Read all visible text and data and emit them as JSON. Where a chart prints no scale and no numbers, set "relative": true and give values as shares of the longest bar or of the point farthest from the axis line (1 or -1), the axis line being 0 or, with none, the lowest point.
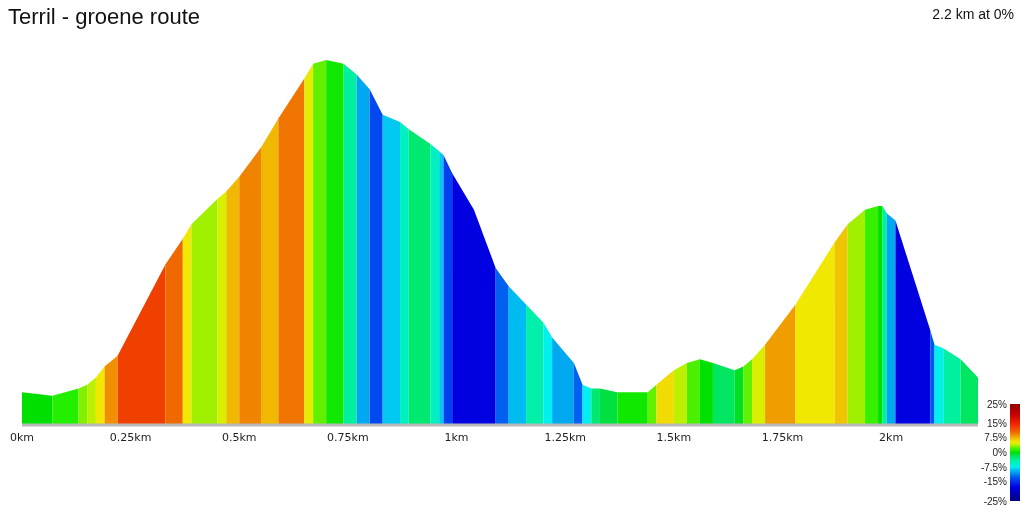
{
  "chart_data": {
    "type": "area",
    "title": "Terril - groene route",
    "subtitle": "2.2 km at 0%",
    "relative": true,
    "series": [
      {
        "x": [
          0,
          0.07
        ],
        "values": [
          0.09,
          0.08
        ],
        "color": "#00e000"
      },
      {
        "x": [
          0.07,
          0.13
        ],
        "values": [
          0.08,
          0.1
        ],
        "color": "#22f000"
      },
      {
        "x": [
          0.13,
          0.15
        ],
        "values": [
          0.1,
          0.11
        ],
        "color": "#80f000"
      },
      {
        "x": [
          0.15,
          0.17
        ],
        "values": [
          0.11,
          0.13
        ],
        "color": "#bcf000"
      },
      {
        "x": [
          0.17,
          0.19
        ],
        "values": [
          0.13,
          0.16
        ],
        "color": "#f0e800"
      },
      {
        "x": [
          0.19,
          0.22
        ],
        "values": [
          0.16,
          0.19
        ],
        "color": "#f09000"
      },
      {
        "x": [
          0.22,
          0.33
        ],
        "values": [
          0.19,
          0.44
        ],
        "color": "#f04000"
      },
      {
        "x": [
          0.33,
          0.37
        ],
        "values": [
          0.44,
          0.51
        ],
        "color": "#f06800"
      },
      {
        "x": [
          0.37,
          0.39
        ],
        "values": [
          0.51,
          0.55
        ],
        "color": "#f0e800"
      },
      {
        "x": [
          0.39,
          0.45
        ],
        "values": [
          0.55,
          0.62
        ],
        "color": "#a0f000"
      },
      {
        "x": [
          0.45,
          0.47
        ],
        "values": [
          0.62,
          0.64
        ],
        "color": "#d8f000"
      },
      {
        "x": [
          0.47,
          0.5
        ],
        "values": [
          0.64,
          0.68
        ],
        "color": "#f0b800"
      },
      {
        "x": [
          0.5,
          0.55
        ],
        "values": [
          0.68,
          0.76
        ],
        "color": "#f08300"
      },
      {
        "x": [
          0.55,
          0.59
        ],
        "values": [
          0.76,
          0.84
        ],
        "color": "#f0b800"
      },
      {
        "x": [
          0.59,
          0.65
        ],
        "values": [
          0.84,
          0.95
        ],
        "color": "#f07500"
      },
      {
        "x": [
          0.65,
          0.67
        ],
        "values": [
          0.95,
          0.99
        ],
        "color": "#e4ec00"
      },
      {
        "x": [
          0.67,
          0.7
        ],
        "values": [
          0.99,
          1
        ],
        "color": "#60f000"
      },
      {
        "x": [
          0.7,
          0.74
        ],
        "values": [
          1,
          0.99
        ],
        "color": "#11e800"
      },
      {
        "x": [
          0.74,
          0.77
        ],
        "values": [
          0.99,
          0.96
        ],
        "color": "#00f0a0"
      },
      {
        "x": [
          0.77,
          0.8
        ],
        "values": [
          0.96,
          0.92
        ],
        "color": "#00a8f0"
      },
      {
        "x": [
          0.8,
          0.83
        ],
        "values": [
          0.92,
          0.85
        ],
        "color": "#0048f0"
      },
      {
        "x": [
          0.83,
          0.87
        ],
        "values": [
          0.85,
          0.83
        ],
        "color": "#00c8f0"
      },
      {
        "x": [
          0.87,
          0.89
        ],
        "values": [
          0.83,
          0.81
        ],
        "color": "#00f0c0"
      },
      {
        "x": [
          0.89,
          0.94
        ],
        "values": [
          0.81,
          0.77
        ],
        "color": "#00e870"
      },
      {
        "x": [
          0.94,
          0.96
        ],
        "values": [
          0.77,
          0.75
        ],
        "color": "#00f0c0"
      },
      {
        "x": [
          0.96,
          0.97
        ],
        "values": [
          0.75,
          0.74
        ],
        "color": "#00c8f0"
      },
      {
        "x": [
          0.97,
          0.99
        ],
        "values": [
          0.74,
          0.69
        ],
        "color": "#0040f0"
      },
      {
        "x": [
          0.99,
          1.04,
          1.09
        ],
        "values": [
          0.69,
          0.59,
          0.43
        ],
        "color": "#0000e0"
      },
      {
        "x": [
          1.09,
          1.12
        ],
        "values": [
          0.43,
          0.38
        ],
        "color": "#0060f0"
      },
      {
        "x": [
          1.12,
          1.16
        ],
        "values": [
          0.38,
          0.33
        ],
        "color": "#00bbf0"
      },
      {
        "x": [
          1.16,
          1.2
        ],
        "values": [
          0.33,
          0.28
        ],
        "color": "#00f0ab"
      },
      {
        "x": [
          1.2,
          1.22
        ],
        "values": [
          0.28,
          0.24
        ],
        "color": "#00f0f0"
      },
      {
        "x": [
          1.22,
          1.27
        ],
        "values": [
          0.24,
          0.17
        ],
        "color": "#00a8f0"
      },
      {
        "x": [
          1.27,
          1.29
        ],
        "values": [
          0.17,
          0.11
        ],
        "color": "#0060f0"
      },
      {
        "x": [
          1.29,
          1.31
        ],
        "values": [
          0.11,
          0.1
        ],
        "color": "#00f0f0"
      },
      {
        "x": [
          1.31,
          1.33
        ],
        "values": [
          0.1,
          0.1
        ],
        "color": "#00e870"
      },
      {
        "x": [
          1.33,
          1.37
        ],
        "values": [
          0.1,
          0.09
        ],
        "color": "#00e040"
      },
      {
        "x": [
          1.37,
          1.44
        ],
        "values": [
          0.09,
          0.09
        ],
        "color": "#11e800"
      },
      {
        "x": [
          1.44,
          1.46
        ],
        "values": [
          0.09,
          0.11
        ],
        "color": "#60f000"
      },
      {
        "x": [
          1.46,
          1.5
        ],
        "values": [
          0.11,
          0.15
        ],
        "color": "#f0dc00"
      },
      {
        "x": [
          1.5,
          1.53
        ],
        "values": [
          0.15,
          0.17
        ],
        "color": "#bcf000"
      },
      {
        "x": [
          1.53,
          1.56
        ],
        "values": [
          0.17,
          0.18
        ],
        "color": "#4bf000"
      },
      {
        "x": [
          1.56,
          1.59
        ],
        "values": [
          0.18,
          0.17
        ],
        "color": "#00e000"
      },
      {
        "x": [
          1.59,
          1.64
        ],
        "values": [
          0.17,
          0.15
        ],
        "color": "#00e660"
      },
      {
        "x": [
          1.64,
          1.66
        ],
        "values": [
          0.15,
          0.16
        ],
        "color": "#00e020"
      },
      {
        "x": [
          1.66,
          1.68
        ],
        "values": [
          0.16,
          0.18
        ],
        "color": "#60f000"
      },
      {
        "x": [
          1.68,
          1.71
        ],
        "values": [
          0.18,
          0.22
        ],
        "color": "#d8f000"
      },
      {
        "x": [
          1.71,
          1.78
        ],
        "values": [
          0.22,
          0.33
        ],
        "color": "#f09d00"
      },
      {
        "x": [
          1.78,
          1.87
        ],
        "values": [
          0.33,
          0.5
        ],
        "color": "#f0e800"
      },
      {
        "x": [
          1.87,
          1.9
        ],
        "values": [
          0.5,
          0.55
        ],
        "color": "#f0c400"
      },
      {
        "x": [
          1.9,
          1.94
        ],
        "values": [
          0.55,
          0.59
        ],
        "color": "#a0f000"
      },
      {
        "x": [
          1.94,
          1.97
        ],
        "values": [
          0.59,
          0.6
        ],
        "color": "#37f000"
      },
      {
        "x": [
          1.97,
          1.98
        ],
        "values": [
          0.6,
          0.6
        ],
        "color": "#00e000"
      },
      {
        "x": [
          1.98,
          1.99
        ],
        "values": [
          0.6,
          0.58
        ],
        "color": "#00f0a0"
      },
      {
        "x": [
          1.99,
          2.01
        ],
        "values": [
          0.58,
          0.56
        ],
        "color": "#00a8f0"
      },
      {
        "x": [
          2.01,
          2.05,
          2.09
        ],
        "values": [
          0.56,
          0.41,
          0.26
        ],
        "color": "#0000e0"
      },
      {
        "x": [
          2.09,
          2.1
        ],
        "values": [
          0.26,
          0.22
        ],
        "color": "#0055f0"
      },
      {
        "x": [
          2.1,
          2.12
        ],
        "values": [
          0.22,
          0.21
        ],
        "color": "#00f0f0"
      },
      {
        "x": [
          2.12,
          2.16
        ],
        "values": [
          0.21,
          0.18
        ],
        "color": "#00f0a0"
      },
      {
        "x": [
          2.16,
          2.2
        ],
        "values": [
          0.18,
          0.13
        ],
        "color": "#00e660"
      }
    ],
    "xlim": [
      0,
      2.2
    ],
    "xticks": [
      {
        "value": 0,
        "label": "0km"
      },
      {
        "value": 0.25,
        "label": "0.25km"
      },
      {
        "value": 0.5,
        "label": "0.5km"
      },
      {
        "value": 0.75,
        "label": "0.75km"
      },
      {
        "value": 1,
        "label": "1km"
      },
      {
        "value": 1.25,
        "label": "1.25km"
      },
      {
        "value": 1.5,
        "label": "1.5km"
      },
      {
        "value": 1.75,
        "label": "1.75km"
      },
      {
        "value": 2,
        "label": "2km"
      }
    ],
    "clim": [
      -25,
      25
    ],
    "cticks": [
      {
        "value": 25,
        "label": "25%"
      },
      {
        "value": 15,
        "label": "15%"
      },
      {
        "value": 7.5,
        "label": "7.5%"
      },
      {
        "value": 0,
        "label": "0%"
      },
      {
        "value": -7.5,
        "label": "-7.5%"
      },
      {
        "value": -15,
        "label": "-15%"
      },
      {
        "value": -25,
        "label": "-25%"
      }
    ]
  }
}
